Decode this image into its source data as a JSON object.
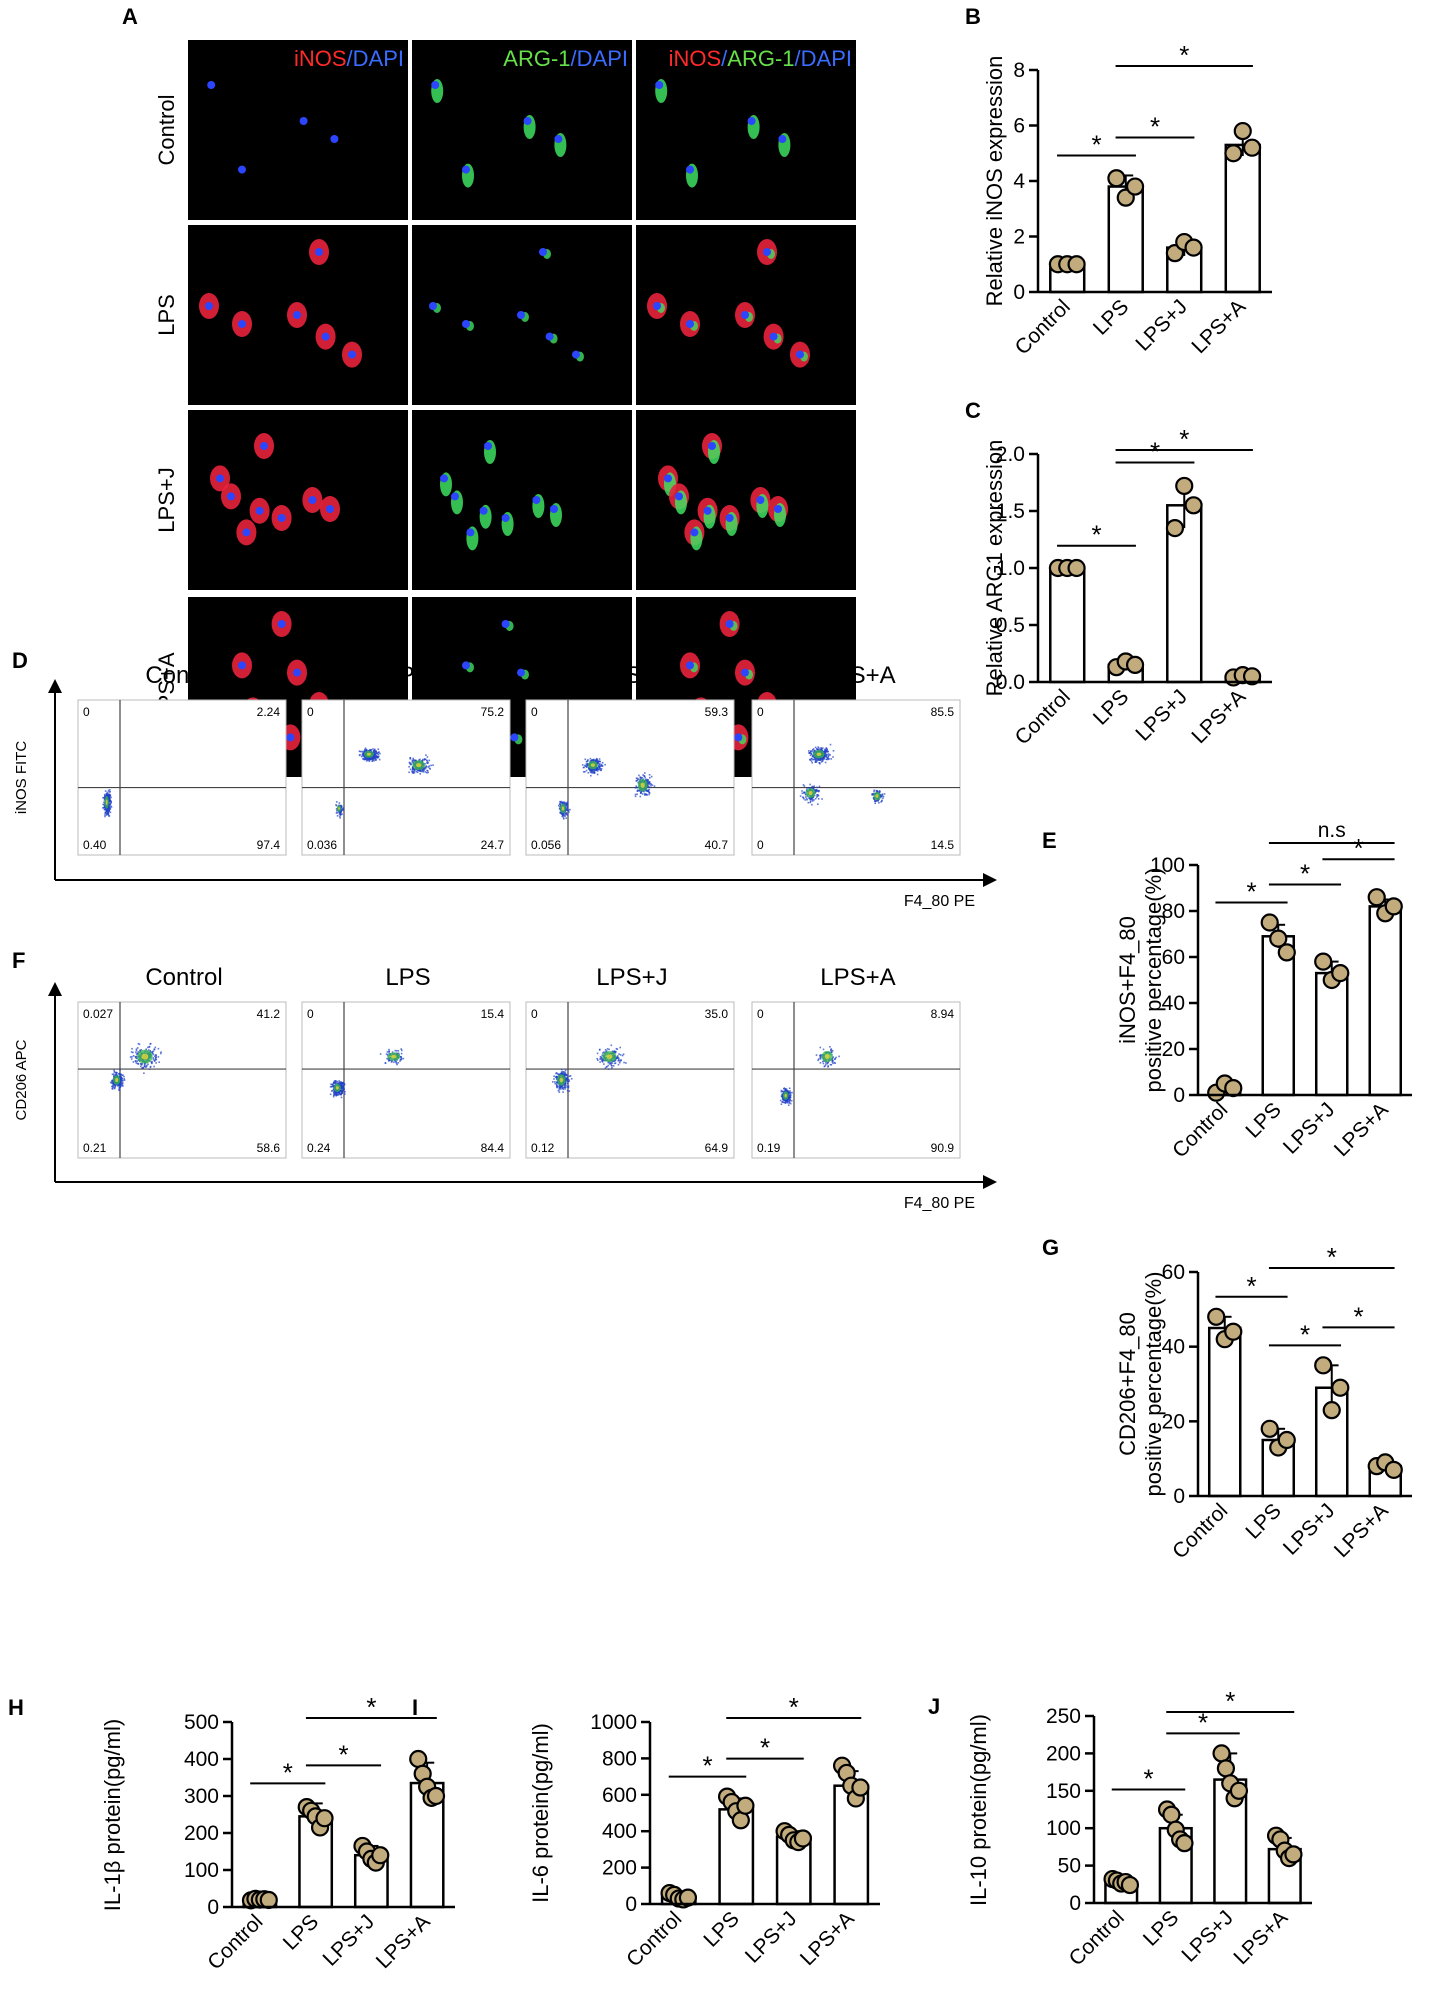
{
  "panels": {
    "A": {
      "letter": "A",
      "channel_headers": [
        [
          {
            "text": "iNOS",
            "color": "#ff2a2a"
          },
          {
            "text": "/DAPI",
            "color": "#3a6cff"
          }
        ],
        [
          {
            "text": "ARG-1",
            "color": "#66e04a"
          },
          {
            "text": "/DAPI",
            "color": "#3a6cff"
          }
        ],
        [
          {
            "text": "iNOS",
            "color": "#ff2a2a"
          },
          {
            "text": "/",
            "color": "#3a6cff"
          },
          {
            "text": "ARG-1",
            "color": "#66e04a"
          },
          {
            "text": "/DAPI",
            "color": "#3a6cff"
          }
        ]
      ],
      "rows": [
        "Control",
        "LPS",
        "LPS+J",
        "LPS+A"
      ]
    },
    "D": {
      "letter": "D",
      "groups": [
        "Control",
        "LPS",
        "LPS+J",
        "LPS+A"
      ],
      "ylabel": "iNOS FITC",
      "xlabel": "F4_80 PE",
      "quadrants": [
        {
          "ul": "0",
          "ur": "2.24",
          "ll": "0.40",
          "lr": "97.4"
        },
        {
          "ul": "0",
          "ur": "75.2",
          "ll": "0.036",
          "lr": "24.7"
        },
        {
          "ul": "0",
          "ur": "59.3",
          "ll": "0.056",
          "lr": "40.7"
        },
        {
          "ul": "0",
          "ur": "85.5",
          "ll": "0",
          "lr": "14.5"
        }
      ]
    },
    "F": {
      "letter": "F",
      "groups": [
        "Control",
        "LPS",
        "LPS+J",
        "LPS+A"
      ],
      "ylabel": "CD206 APC",
      "xlabel": "F4_80 PE",
      "quadrants": [
        {
          "ul": "0.027",
          "ur": "41.2",
          "ll": "0.21",
          "lr": "58.6"
        },
        {
          "ul": "0",
          "ur": "15.4",
          "ll": "0.24",
          "lr": "84.4"
        },
        {
          "ul": "0",
          "ur": "35.0",
          "ll": "0.12",
          "lr": "64.9"
        },
        {
          "ul": "0",
          "ur": "8.94",
          "ll": "0.19",
          "lr": "90.9"
        }
      ]
    }
  },
  "colors": {
    "point_fill": "#c2ab7c",
    "point_stroke": "#000000",
    "bar_fill": "#ffffff",
    "bar_stroke": "#000000",
    "microscopy_bg": "#000000",
    "scatter_blue": "#2040c8"
  },
  "chart_data": [
    {
      "id": "B",
      "letter": "B",
      "type": "bar",
      "categories": [
        "Control",
        "LPS",
        "LPS+J",
        "LPS+A"
      ],
      "values": [
        1.0,
        3.8,
        1.6,
        5.3
      ],
      "errors": [
        0.1,
        0.4,
        0.3,
        0.4
      ],
      "points": [
        [
          1.0,
          1.0,
          1.0
        ],
        [
          4.1,
          3.4,
          3.8
        ],
        [
          1.4,
          1.8,
          1.6
        ],
        [
          5.0,
          5.8,
          5.2
        ]
      ],
      "ylabel": "Relative iNOS expression",
      "yticks": [
        "0",
        "2",
        "4",
        "6",
        "8"
      ],
      "ylim": [
        0,
        8
      ],
      "significance": [
        {
          "from": 0,
          "to": 1,
          "label": "*"
        },
        {
          "from": 1,
          "to": 2,
          "label": "*"
        },
        {
          "from": 1,
          "to": 3,
          "label": "*"
        }
      ]
    },
    {
      "id": "C",
      "letter": "C",
      "type": "bar",
      "categories": [
        "Control",
        "LPS",
        "LPS+J",
        "LPS+A"
      ],
      "values": [
        1.0,
        0.15,
        1.55,
        0.05
      ],
      "errors": [
        0.02,
        0.03,
        0.2,
        0.02
      ],
      "points": [
        [
          1.0,
          1.0,
          1.0
        ],
        [
          0.13,
          0.18,
          0.15
        ],
        [
          1.35,
          1.72,
          1.55
        ],
        [
          0.04,
          0.06,
          0.05
        ]
      ],
      "ylabel": "Relative ARG1 expression",
      "yticks": [
        "0.0",
        "0.5",
        "1.0",
        "1.5",
        "2.0"
      ],
      "ylim": [
        0,
        2.0
      ],
      "significance": [
        {
          "from": 0,
          "to": 1,
          "label": "*"
        },
        {
          "from": 1,
          "to": 2,
          "label": "*"
        },
        {
          "from": 1,
          "to": 3,
          "label": "*"
        }
      ]
    },
    {
      "id": "E",
      "letter": "E",
      "type": "bar",
      "categories": [
        "Control",
        "LPS",
        "LPS+J",
        "LPS+A"
      ],
      "values": [
        2,
        69,
        53,
        82
      ],
      "errors": [
        1.5,
        5,
        5,
        3
      ],
      "points": [
        [
          1,
          5,
          3
        ],
        [
          75,
          68,
          62
        ],
        [
          58,
          50,
          53
        ],
        [
          86,
          79,
          82
        ]
      ],
      "ylabel_lines": [
        "iNOS+F4_80",
        "positive percentage(%)"
      ],
      "yticks": [
        "0",
        "20",
        "40",
        "60",
        "80",
        "100"
      ],
      "ylim": [
        0,
        100
      ],
      "significance": [
        {
          "from": 0,
          "to": 1,
          "label": "*"
        },
        {
          "from": 1,
          "to": 2,
          "label": "*"
        },
        {
          "from": 2,
          "to": 3,
          "label": "*"
        },
        {
          "from": 1,
          "to": 3,
          "label": "n.s"
        }
      ]
    },
    {
      "id": "G",
      "letter": "G",
      "type": "bar",
      "categories": [
        "Control",
        "LPS",
        "LPS+J",
        "LPS+A"
      ],
      "values": [
        45,
        15,
        29,
        8
      ],
      "errors": [
        3,
        3,
        6,
        1
      ],
      "points": [
        [
          48,
          42,
          44
        ],
        [
          18,
          13,
          15
        ],
        [
          35,
          23,
          29
        ],
        [
          8,
          9,
          7
        ]
      ],
      "ylabel_lines": [
        "CD206+F4_80",
        "positive percentage(%)"
      ],
      "yticks": [
        "0",
        "20",
        "40",
        "60"
      ],
      "ylim": [
        0,
        60
      ],
      "significance": [
        {
          "from": 0,
          "to": 1,
          "label": "*"
        },
        {
          "from": 1,
          "to": 2,
          "label": "*"
        },
        {
          "from": 2,
          "to": 3,
          "label": "*"
        },
        {
          "from": 1,
          "to": 3,
          "label": "*"
        }
      ]
    },
    {
      "id": "H",
      "letter": "H",
      "type": "bar",
      "categories": [
        "Control",
        "LPS",
        "LPS+J",
        "LPS+A"
      ],
      "values": [
        20,
        245,
        140,
        335
      ],
      "errors": [
        4,
        35,
        25,
        55
      ],
      "points": [
        [
          18,
          22,
          20,
          21,
          19
        ],
        [
          270,
          260,
          245,
          215,
          240
        ],
        [
          165,
          150,
          130,
          120,
          140
        ],
        [
          400,
          360,
          325,
          295,
          300
        ]
      ],
      "ylabel": "IL-1β protein(pg/ml)",
      "yticks": [
        "0",
        "100",
        "200",
        "300",
        "400",
        "500"
      ],
      "ylim": [
        0,
        500
      ],
      "significance": [
        {
          "from": 0,
          "to": 1,
          "label": "*"
        },
        {
          "from": 1,
          "to": 2,
          "label": "*"
        },
        {
          "from": 1,
          "to": 3,
          "label": "*"
        }
      ]
    },
    {
      "id": "I",
      "letter": "I",
      "type": "bar",
      "categories": [
        "Control",
        "LPS",
        "LPS+J",
        "LPS+A"
      ],
      "values": [
        40,
        520,
        370,
        650
      ],
      "errors": [
        15,
        60,
        30,
        80
      ],
      "points": [
        [
          60,
          50,
          30,
          25,
          35
        ],
        [
          590,
          560,
          510,
          460,
          540
        ],
        [
          400,
          380,
          350,
          340,
          360
        ],
        [
          760,
          720,
          650,
          580,
          640
        ]
      ],
      "ylabel": "IL-6 protein(pg/ml)",
      "yticks": [
        "0",
        "200",
        "400",
        "600",
        "800",
        "1000"
      ],
      "ylim": [
        0,
        1000
      ],
      "significance": [
        {
          "from": 0,
          "to": 1,
          "label": "*"
        },
        {
          "from": 1,
          "to": 2,
          "label": "*"
        },
        {
          "from": 1,
          "to": 3,
          "label": "*"
        }
      ]
    },
    {
      "id": "J",
      "letter": "J",
      "type": "bar",
      "categories": [
        "Control",
        "LPS",
        "LPS+J",
        "LPS+A"
      ],
      "values": [
        28,
        100,
        165,
        72
      ],
      "errors": [
        4,
        18,
        35,
        15
      ],
      "points": [
        [
          32,
          30,
          26,
          28,
          24
        ],
        [
          125,
          118,
          98,
          85,
          80
        ],
        [
          200,
          180,
          160,
          140,
          150
        ],
        [
          90,
          85,
          70,
          60,
          65
        ]
      ],
      "ylabel": "IL-10 protein(pg/ml)",
      "yticks": [
        "0",
        "50",
        "100",
        "150",
        "200",
        "250"
      ],
      "ylim": [
        0,
        250
      ],
      "significance": [
        {
          "from": 0,
          "to": 1,
          "label": "*"
        },
        {
          "from": 1,
          "to": 2,
          "label": "*"
        },
        {
          "from": 1,
          "to": 3,
          "label": "*"
        }
      ]
    }
  ]
}
